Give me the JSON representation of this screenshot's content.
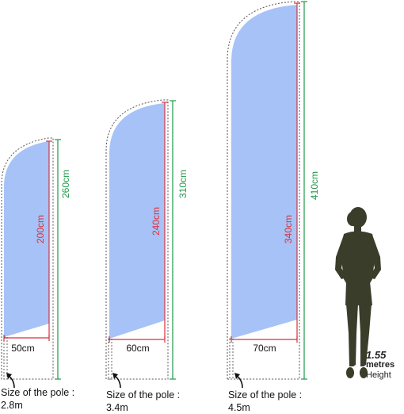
{
  "colors": {
    "flag_fill": "#a6c2f7",
    "flag_height_line": "#d8323c",
    "total_height_line": "#1f9a4a",
    "width_line": "#d8323c",
    "silhouette": "#3a3d2a"
  },
  "flags": [
    {
      "flag_height": "200cm",
      "total_height": "260cm",
      "width": "50cm",
      "pole_caption_line1": "Size of the pole :",
      "pole_caption_line2": "2.8m"
    },
    {
      "flag_height": "240cm",
      "total_height": "310cm",
      "width": "60cm",
      "pole_caption_line1": "Size of the pole :",
      "pole_caption_line2": "3.4m"
    },
    {
      "flag_height": "340cm",
      "total_height": "410cm",
      "width": "70cm",
      "pole_caption_line1": "Size of the pole :",
      "pole_caption_line2": "4.5m"
    }
  ],
  "human": {
    "height_value": "1.55",
    "height_unit": "metres",
    "height_label": "Height"
  }
}
